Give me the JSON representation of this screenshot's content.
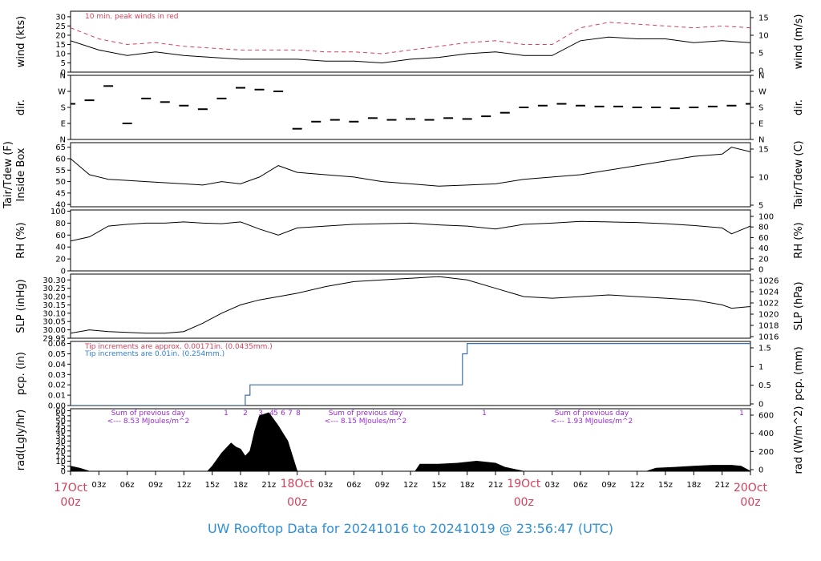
{
  "footer": "UW Rooftop Data for 20241016  to  20241019 @ 23:56:47  (UTC)",
  "colors": {
    "day": "#d6405a",
    "footer": "#2e8fd6",
    "peak": "#d6405a",
    "sums": "#9a2ad6",
    "tip_red": "#d6405a",
    "tip_blue": "#2e7fd6",
    "pcp_line": "#3d6fa8"
  },
  "x_axis": {
    "hour_labels": [
      "03z",
      "06z",
      "09z",
      "12z",
      "15z",
      "18z",
      "21z",
      "18Oct",
      "03z",
      "06z",
      "09z",
      "12z",
      "15z",
      "18z",
      "21z",
      "19Oct",
      "03z",
      "06z",
      "09z",
      "12z",
      "15z",
      "18z",
      "21z"
    ],
    "day_labels": [
      {
        "day": "17Oct",
        "hour": "00z"
      },
      {
        "day": "18Oct",
        "hour": "00z"
      },
      {
        "day": "19Oct",
        "hour": "00z"
      },
      {
        "day": "20Oct",
        "hour": "00z"
      }
    ]
  },
  "chart_data": [
    {
      "type": "line",
      "name": "wind",
      "ylabel": "wind (kts)",
      "ylabel_right": "wind (m/s)",
      "yticks_left": [
        "0",
        "5",
        "10",
        "15",
        "20",
        "25",
        "30"
      ],
      "yticks_right": [
        "0",
        "5",
        "10",
        "15"
      ],
      "ylim": [
        0,
        33
      ],
      "annotation": "10 min. peak winds in red",
      "x_hours": [
        0,
        3,
        6,
        9,
        12,
        15,
        18,
        21,
        24,
        27,
        30,
        33,
        36,
        39,
        42,
        45,
        48,
        51,
        54,
        57,
        60,
        63,
        66,
        69,
        72
      ],
      "series": [
        {
          "values": [
            17,
            12,
            9,
            11,
            9,
            8,
            7,
            7,
            7,
            6,
            6,
            5,
            7,
            8,
            10,
            11,
            9,
            9,
            17,
            19,
            18,
            18,
            16,
            17,
            16
          ]
        },
        {
          "values": [
            24,
            18,
            15,
            16,
            14,
            13,
            12,
            12,
            12,
            11,
            11,
            10,
            12,
            14,
            16,
            17,
            15,
            15,
            24,
            27,
            26,
            25,
            24,
            25,
            24
          ]
        }
      ]
    },
    {
      "type": "scatter",
      "name": "dir",
      "ylabel": "dir.",
      "ylabel_right": "dir.",
      "yticks_left": [
        "N",
        "W",
        "S",
        "E",
        "N"
      ],
      "yticks_right": [
        "N",
        "W",
        "S",
        "E",
        "N"
      ],
      "ylim": [
        0,
        360
      ],
      "x_hours": [
        0,
        2,
        4,
        6,
        8,
        10,
        12,
        14,
        16,
        18,
        20,
        22,
        24,
        26,
        28,
        30,
        32,
        34,
        36,
        38,
        40,
        42,
        44,
        46,
        48,
        50,
        52,
        54,
        56,
        58,
        60,
        62,
        64,
        66,
        68,
        70,
        72
      ],
      "values": [
        200,
        220,
        300,
        90,
        230,
        210,
        190,
        170,
        230,
        290,
        280,
        270,
        60,
        100,
        110,
        100,
        120,
        110,
        115,
        110,
        120,
        115,
        130,
        150,
        180,
        190,
        200,
        190,
        185,
        185,
        180,
        180,
        175,
        180,
        185,
        190,
        200
      ]
    },
    {
      "type": "line",
      "name": "temp",
      "ylabel": "Tair/Tdew (F)",
      "ylabel2": "Inside Box",
      "ylabel_right": "Tair/Tdew (C)",
      "yticks_left": [
        "40",
        "45",
        "50",
        "55",
        "60",
        "65"
      ],
      "yticks_right": [
        "5",
        "10",
        "15"
      ],
      "ylim": [
        39,
        67
      ],
      "x_hours": [
        0,
        2,
        4,
        6,
        8,
        10,
        12,
        14,
        16,
        18,
        20,
        22,
        24,
        27,
        30,
        33,
        36,
        39,
        42,
        45,
        48,
        51,
        54,
        57,
        60,
        63,
        66,
        69,
        70,
        72
      ],
      "series": [
        {
          "values": [
            60,
            53,
            51,
            50.5,
            50,
            49.5,
            49,
            48.5,
            50,
            49,
            52,
            57,
            54,
            53,
            52,
            50,
            49,
            48,
            48.5,
            49,
            51,
            52,
            53,
            55,
            57,
            59,
            61,
            62,
            65,
            63
          ]
        }
      ]
    },
    {
      "type": "line",
      "name": "rh",
      "ylabel": "RH (%)",
      "ylabel_right": "RH (%)",
      "yticks_left": [
        "0",
        "20",
        "40",
        "60",
        "80",
        "100"
      ],
      "yticks_right": [
        "0",
        "20",
        "40",
        "60",
        "80",
        "100"
      ],
      "ylim": [
        0,
        102
      ],
      "x_hours": [
        0,
        2,
        4,
        6,
        8,
        10,
        12,
        14,
        16,
        18,
        20,
        22,
        24,
        27,
        30,
        33,
        36,
        39,
        42,
        45,
        48,
        51,
        54,
        57,
        60,
        63,
        66,
        69,
        70,
        72
      ],
      "series": [
        {
          "values": [
            50,
            57,
            75,
            78,
            80,
            80,
            82,
            80,
            79,
            82,
            70,
            60,
            72,
            75,
            78,
            79,
            80,
            77,
            75,
            70,
            78,
            80,
            83,
            82,
            81,
            79,
            76,
            72,
            62,
            75
          ]
        }
      ]
    },
    {
      "type": "line",
      "name": "slp",
      "ylabel": "SLP (inHg)",
      "ylabel_right": "SLP (hPa)",
      "yticks_left": [
        "29.95",
        "30.00",
        "30.05",
        "30.10",
        "30.15",
        "30.20",
        "30.25",
        "30.30"
      ],
      "yticks_right": [
        "1016",
        "1018",
        "1020",
        "1022",
        "1024",
        "1026"
      ],
      "ylim": [
        29.95,
        30.335
      ],
      "x_hours": [
        0,
        2,
        4,
        6,
        8,
        10,
        12,
        14,
        16,
        18,
        20,
        22,
        24,
        27,
        30,
        33,
        36,
        39,
        42,
        45,
        48,
        51,
        54,
        57,
        60,
        63,
        66,
        69,
        70,
        72
      ],
      "series": [
        {
          "values": [
            29.98,
            30.0,
            29.99,
            29.985,
            29.98,
            29.98,
            29.99,
            30.04,
            30.1,
            30.15,
            30.18,
            30.2,
            30.22,
            30.26,
            30.29,
            30.3,
            30.31,
            30.32,
            30.3,
            30.25,
            30.2,
            30.19,
            30.2,
            30.21,
            30.2,
            30.19,
            30.18,
            30.15,
            30.13,
            30.14
          ]
        }
      ]
    },
    {
      "type": "line",
      "name": "pcp",
      "ylabel": "pcp. (in)",
      "ylabel_right": "pcp. (mm)",
      "yticks_left": [
        "0.00",
        "0.01",
        "0.02",
        "0.03",
        "0.04",
        "0.05",
        "0.06"
      ],
      "yticks_right": [
        "0",
        "0.5",
        "1",
        "1.5"
      ],
      "ylim": [
        0,
        0.062
      ],
      "annotation_red": "Tip increments are approx. 0.00171in. (0.0435mm.)",
      "annotation_blue": "Tip increments are 0.01in. (0.254mm.)",
      "x_hours": [
        0,
        18.5,
        18.5,
        19,
        19,
        41.5,
        41.5,
        42,
        42,
        72
      ],
      "series": [
        {
          "values": [
            0,
            0,
            0.01,
            0.01,
            0.02,
            0.02,
            0.05,
            0.05,
            0.06,
            0.06
          ]
        }
      ]
    },
    {
      "type": "area",
      "name": "rad",
      "ylabel": "rad(Lgly/hr)",
      "ylabel_right": "rad (W/m^2)",
      "yticks_left": [
        "0",
        "5",
        "10",
        "15",
        "20",
        "25",
        "30",
        "35",
        "40",
        "45",
        "50",
        "55",
        "60"
      ],
      "yticks_right": [
        "0",
        "200",
        "400",
        "600"
      ],
      "ylim": [
        0,
        62
      ],
      "x_hours": [
        0,
        1,
        2,
        14.5,
        15,
        16,
        17,
        17.5,
        18,
        18.5,
        19,
        19.5,
        20,
        21,
        22,
        23,
        24,
        36.5,
        37,
        39,
        41,
        43,
        45,
        46,
        48,
        61,
        62,
        64,
        66,
        68,
        70,
        71,
        72
      ],
      "series": [
        {
          "values": [
            5,
            3,
            0,
            0,
            5,
            18,
            28,
            24,
            22,
            15,
            20,
            40,
            55,
            58,
            45,
            30,
            0,
            0,
            7,
            7,
            8,
            10,
            8,
            4,
            0,
            0,
            3,
            4,
            5,
            6,
            6,
            5,
            0
          ]
        }
      ],
      "day_markers": [
        "1",
        "2",
        "3",
        "4",
        "5",
        "6",
        "7",
        "8",
        "1",
        "1"
      ],
      "annotations": [
        {
          "line1": "Sum of previous day",
          "line2": "<--- 8.53 MJoules/m^2"
        },
        {
          "line1": "Sum of previous day",
          "line2": "<--- 8.15 MJoules/m^2"
        },
        {
          "line1": "Sum of previous day",
          "line2": "<--- 1.93 MJoules/m^2"
        }
      ]
    }
  ]
}
